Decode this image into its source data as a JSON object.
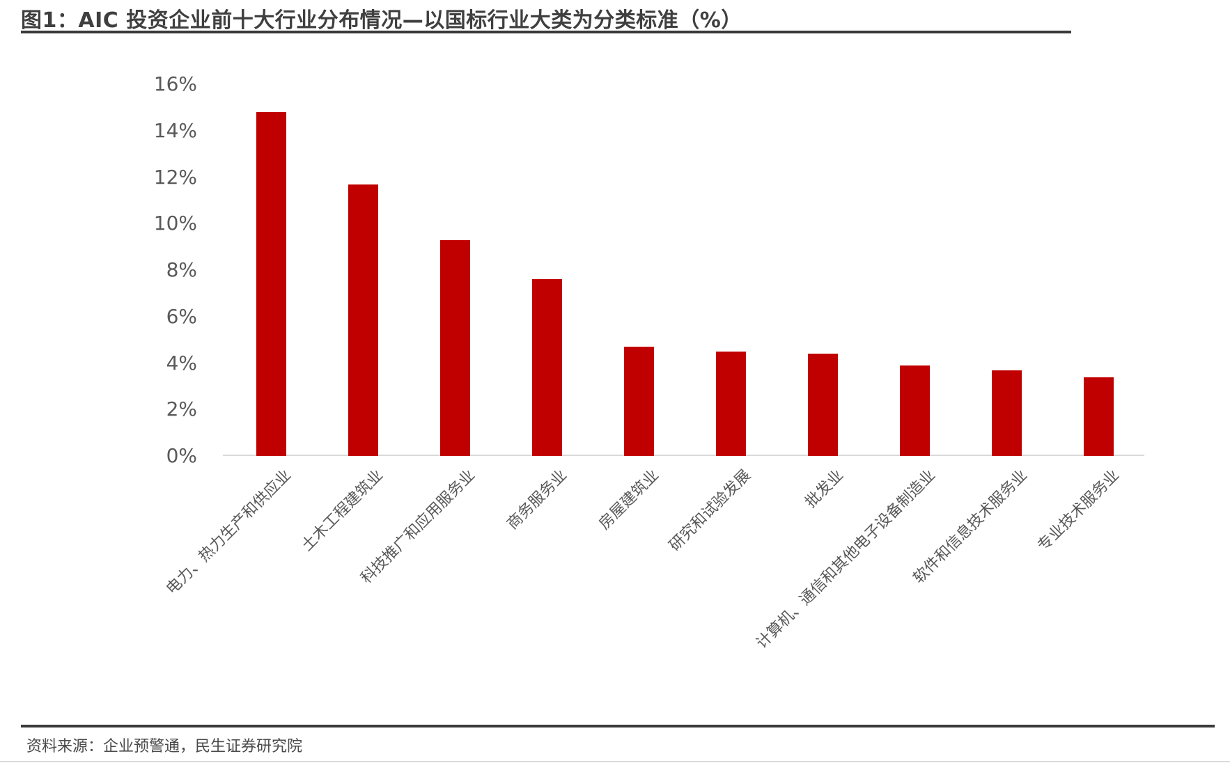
{
  "figure": {
    "title": "图1：AIC 投资企业前十大行业分布情况—以国标行业大类为分类标准（%）",
    "source": "资料来源：企业预警通，民生证券研究院"
  },
  "colors": {
    "bar": "#C00000",
    "title_text": "#3F3F3F",
    "rule": "#3A3A3A",
    "axis_text": "#595959",
    "baseline": "#D9D9D9"
  },
  "chart_data": {
    "type": "bar",
    "title": "图1：AIC 投资企业前十大行业分布情况—以国标行业大类为分类标准（%）",
    "categories": [
      "电力、热力生产和供应业",
      "土木工程建筑业",
      "科技推广和应用服务业",
      "商务服务业",
      "房屋建筑业",
      "研究和试验发展",
      "批发业",
      "计算机、通信和其他电子设备制造业",
      "软件和信息技术服务业",
      "专业技术服务业"
    ],
    "values": [
      14.8,
      11.7,
      9.3,
      7.6,
      4.7,
      4.5,
      4.4,
      3.9,
      3.7,
      3.4
    ],
    "xlabel": "",
    "ylabel": "",
    "ylim": [
      0,
      16
    ],
    "ytick_step": 2,
    "yticks": [
      "0%",
      "2%",
      "4%",
      "6%",
      "8%",
      "10%",
      "12%",
      "14%",
      "16%"
    ],
    "grid": false,
    "legend": "none",
    "bar_color": "#C00000",
    "source": "资料来源：企业预警通，民生证券研究院"
  }
}
